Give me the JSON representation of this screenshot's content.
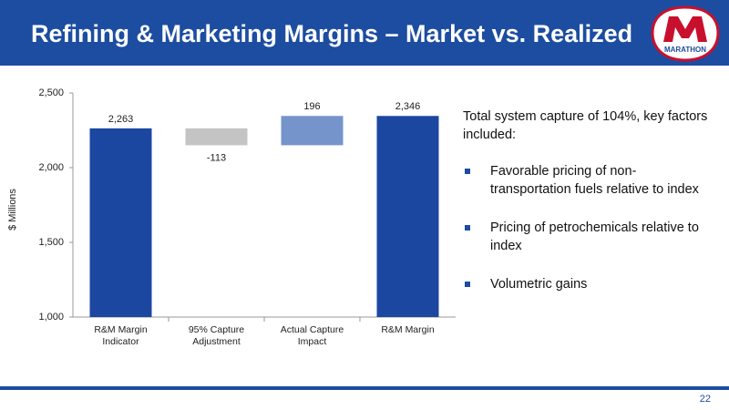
{
  "header": {
    "title": "Refining & Marketing Margins – Market vs. Realized",
    "logo_text": "MARATHON"
  },
  "chart_data": {
    "type": "waterfall",
    "y_axis_label": "$ Millions",
    "categories": [
      "R&M Margin Indicator",
      "95% Capture Adjustment",
      "Actual Capture Impact",
      "R&M Margin"
    ],
    "measures": [
      "total",
      "relative",
      "relative",
      "total"
    ],
    "values": [
      2263,
      -113,
      196,
      2346
    ],
    "value_labels": [
      "2,263",
      "-113",
      "196",
      "2,346"
    ],
    "colors": {
      "total": "#1c47a1",
      "decrease": "#c4c4c4",
      "increase": "#7494cb"
    },
    "ylim": [
      1000,
      2500
    ],
    "yticks": [
      {
        "value": 1000,
        "label": "1,000"
      },
      {
        "value": 1500,
        "label": "1,500"
      },
      {
        "value": 2000,
        "label": "2,000"
      },
      {
        "value": 2500,
        "label": "2,500"
      }
    ]
  },
  "notes": {
    "intro": "Total system capture of 104%, key factors included:",
    "bullets": [
      "Favorable pricing of non-transportation fuels relative to index",
      "Pricing of petrochemicals relative to index",
      "Volumetric gains"
    ]
  },
  "footer": {
    "page_number": "22"
  }
}
